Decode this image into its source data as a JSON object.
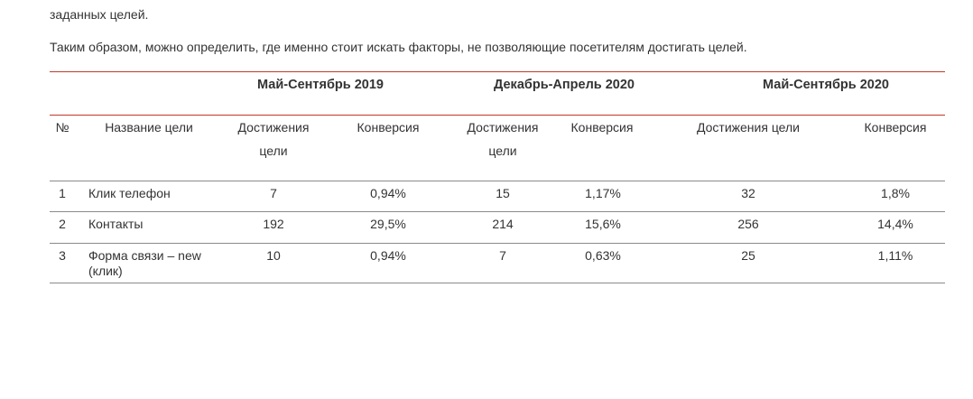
{
  "text": {
    "paragraph_top": "заданных целей.",
    "paragraph_main": "Таким образом, можно определить, где именно стоит искать факторы, не позволяющие посетителям достигать целей."
  },
  "table": {
    "periods": [
      "Май-Сентябрь 2019",
      "Декабрь-Апрель 2020",
      "Май-Сентябрь 2020"
    ],
    "columns": {
      "num": "№",
      "goal_name": "Название цели",
      "achievements_line1": "Достижения",
      "achievements_line2": "цели",
      "achievements_full": "Достижения цели",
      "conversion": "Конверсия"
    },
    "rows": [
      {
        "num": "1",
        "name": "Клик телефон",
        "p1_ach": "7",
        "p1_conv": "0,94%",
        "p2_ach": "15",
        "p2_conv": "1,17%",
        "p3_ach": "32",
        "p3_conv": "1,8%"
      },
      {
        "num": "2",
        "name": "Контакты",
        "p1_ach": "192",
        "p1_conv": "29,5%",
        "p2_ach": "214",
        "p2_conv": "15,6%",
        "p3_ach": "256",
        "p3_conv": "14,4%"
      },
      {
        "num": "3",
        "name_line1": "Форма связи – new",
        "name_line2": "(клик)",
        "p1_ach": "10",
        "p1_conv": "0,94%",
        "p2_ach": "7",
        "p2_conv": "0,63%",
        "p3_ach": "25",
        "p3_conv": "1,11%"
      }
    ]
  }
}
